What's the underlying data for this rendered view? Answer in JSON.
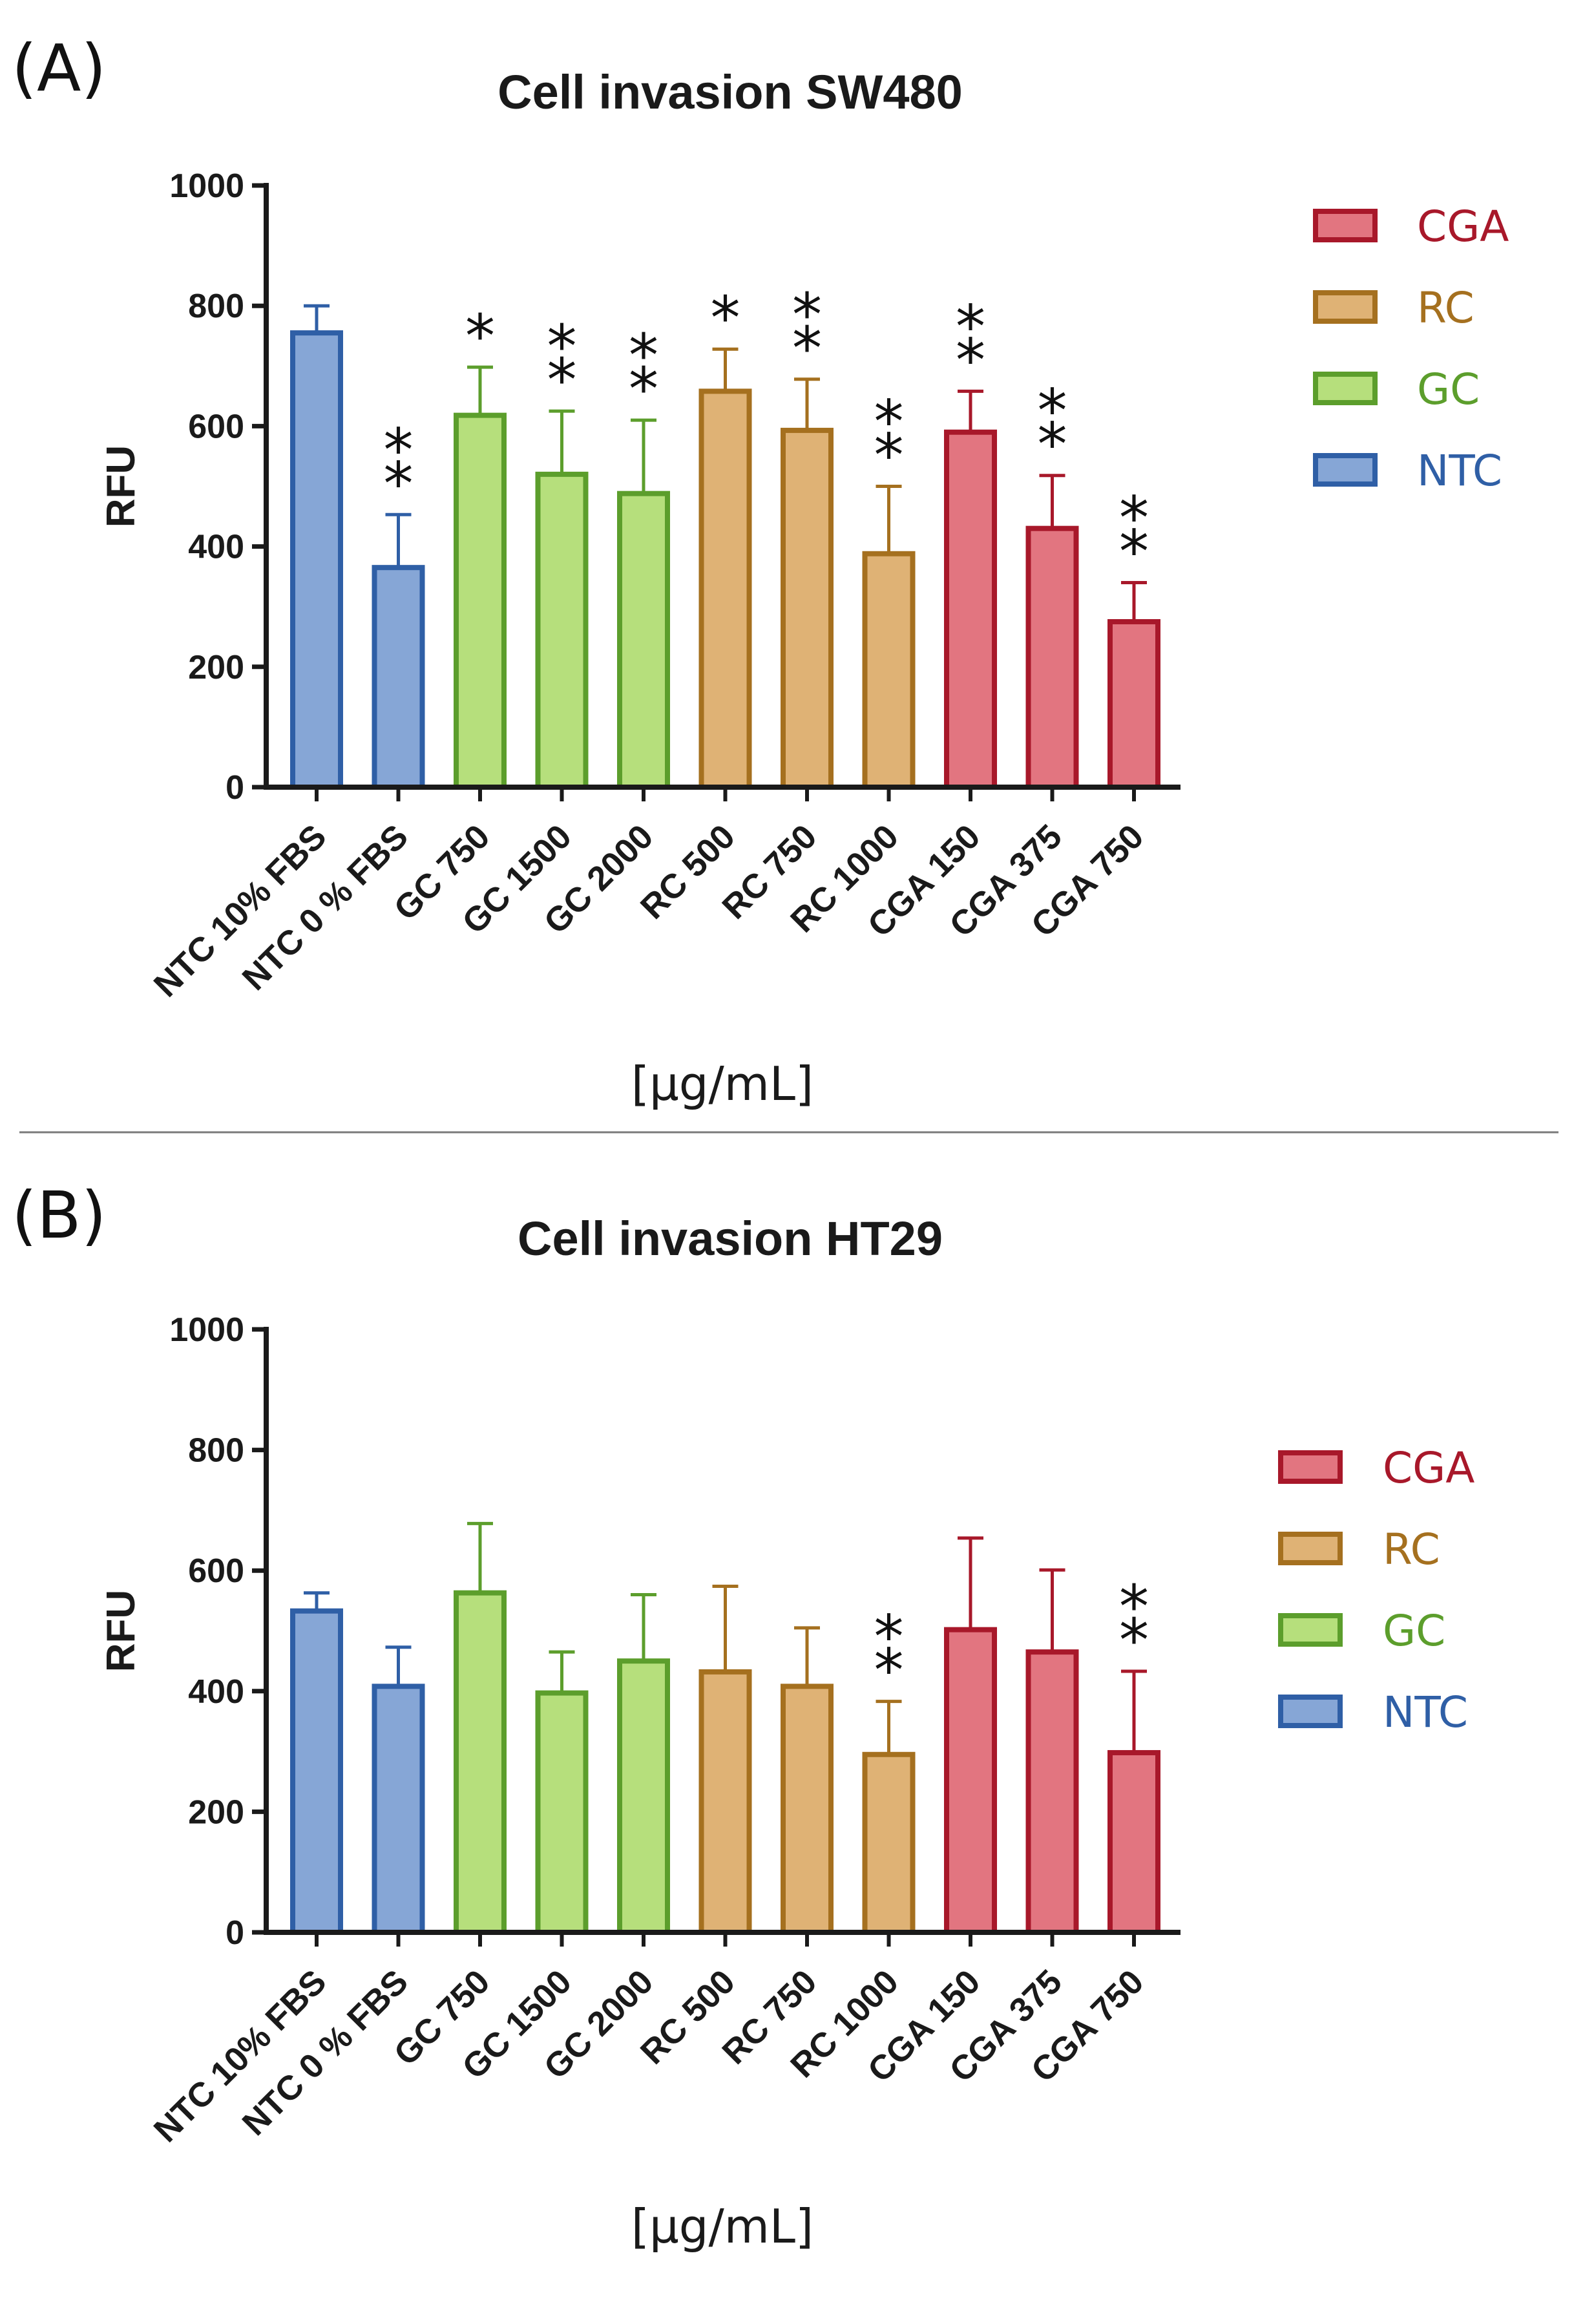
{
  "panels": [
    {
      "letter": "(A)"
    },
    {
      "letter": "(B)"
    }
  ],
  "colors": {
    "NTC": {
      "fill": "#86a6d6",
      "stroke": "#2f5fa6",
      "text": "#2f5fa6"
    },
    "GC": {
      "fill": "#b6df7c",
      "stroke": "#5c9e2c",
      "text": "#5c9e2c"
    },
    "RC": {
      "fill": "#dfb275",
      "stroke": "#a5701f",
      "text": "#a5701f"
    },
    "CGA": {
      "fill": "#e27580",
      "stroke": "#a8182a",
      "text": "#a8182a"
    },
    "axis": "#1a1a1a"
  },
  "chart_data": [
    {
      "type": "bar",
      "title": "Cell invasion SW480",
      "ylabel": "RFU",
      "xlabel": "[µg/mL]",
      "ylim": [
        0,
        1000
      ],
      "yticks": [
        0,
        200,
        400,
        600,
        800,
        1000
      ],
      "categories": [
        "NTC 10% FBS",
        "NTC 0 % FBS",
        "GC 750",
        "GC 1500",
        "GC 2000",
        "RC 500",
        "RC 750",
        "RC 1000",
        "CGA 150",
        "CGA 375",
        "CGA 750"
      ],
      "groups": [
        "NTC",
        "NTC",
        "GC",
        "GC",
        "GC",
        "RC",
        "RC",
        "RC",
        "CGA",
        "CGA",
        "CGA"
      ],
      "values": [
        755,
        365,
        618,
        520,
        488,
        658,
        593,
        388,
        590,
        430,
        275
      ],
      "errors": [
        45,
        88,
        80,
        105,
        122,
        70,
        85,
        112,
        68,
        88,
        65
      ],
      "significance": [
        "",
        "**",
        "*",
        "**",
        "**",
        "*",
        "**",
        "**",
        "**",
        "**",
        "**"
      ],
      "legend": [
        "CGA",
        "RC",
        "GC",
        "NTC"
      ]
    },
    {
      "type": "bar",
      "title": "Cell invasion HT29",
      "ylabel": "RFU",
      "xlabel": "[µg/mL]",
      "ylim": [
        0,
        1000
      ],
      "yticks": [
        0,
        200,
        400,
        600,
        800,
        1000
      ],
      "categories": [
        "NTC 10% FBS",
        "NTC 0 % FBS",
        "GC 750",
        "GC 1500",
        "GC 2000",
        "RC 500",
        "RC 750",
        "RC 1000",
        "CGA 150",
        "CGA 375",
        "CGA 750"
      ],
      "groups": [
        "NTC",
        "NTC",
        "GC",
        "GC",
        "GC",
        "RC",
        "RC",
        "RC",
        "CGA",
        "CGA",
        "CGA"
      ],
      "values": [
        533,
        408,
        563,
        397,
        450,
        432,
        408,
        295,
        502,
        465,
        298
      ],
      "errors": [
        30,
        65,
        115,
        68,
        110,
        142,
        97,
        88,
        152,
        136,
        135
      ],
      "significance": [
        "",
        "",
        "",
        "",
        "",
        "",
        "",
        "**",
        "",
        "",
        "**"
      ],
      "legend": [
        "CGA",
        "RC",
        "GC",
        "NTC"
      ]
    }
  ]
}
